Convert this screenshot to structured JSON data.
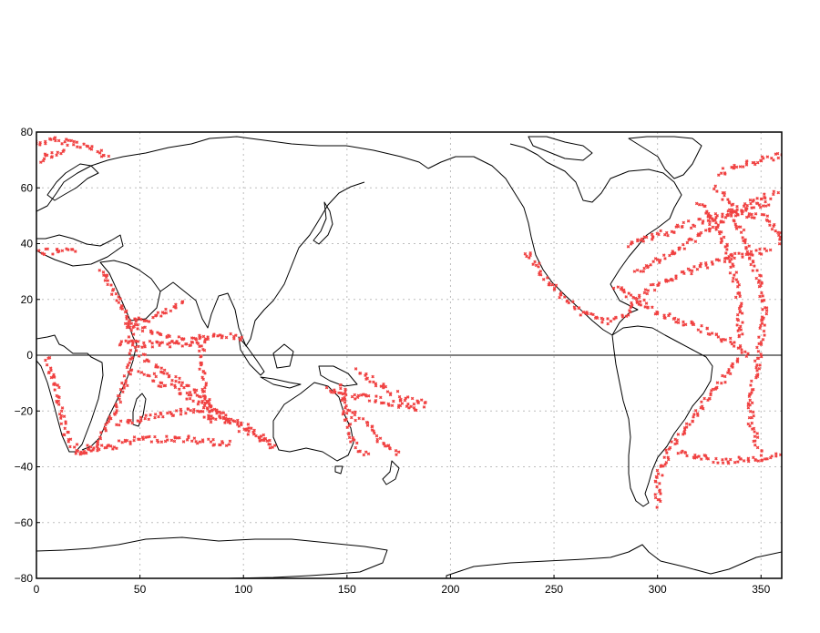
{
  "chart_data": {
    "type": "scatter",
    "title": "",
    "xlabel": "",
    "ylabel": "",
    "xlim": [
      0,
      360
    ],
    "ylim": [
      -80,
      80
    ],
    "grid": true,
    "reference_line": {
      "y": 0
    },
    "x_ticks": [
      0,
      50,
      100,
      150,
      200,
      250,
      300,
      350
    ],
    "y_ticks": [
      -80,
      -60,
      -40,
      -20,
      0,
      20,
      40,
      60,
      80
    ],
    "x_tick_labels": [
      "0",
      "50",
      "100",
      "150",
      "200",
      "250",
      "300",
      "350"
    ],
    "y_tick_labels": [
      "−80",
      "−60",
      "−40",
      "−20",
      "0",
      "20",
      "40",
      "60",
      "80"
    ],
    "point_color": "#f04040",
    "coastline_color": "#000000",
    "series": [
      {
        "tracks": [
          [
            [
              0,
              76
            ],
            [
              10,
              77
            ],
            [
              20,
              76
            ],
            [
              30,
              73
            ],
            [
              35,
              70
            ]
          ],
          [
            [
              0,
              70
            ],
            [
              8,
              72
            ],
            [
              15,
              74
            ]
          ],
          [
            [
              0,
              37
            ],
            [
              10,
              37
            ],
            [
              20,
              37
            ]
          ],
          [
            [
              32,
              31
            ],
            [
              35,
              27
            ],
            [
              38,
              22
            ],
            [
              42,
              16
            ],
            [
              44,
              13
            ],
            [
              48,
              12
            ],
            [
              55,
              13
            ],
            [
              65,
              16
            ],
            [
              72,
              19
            ]
          ],
          [
            [
              44,
              12
            ],
            [
              50,
              10
            ],
            [
              58,
              8
            ],
            [
              66,
              6
            ],
            [
              74,
              5
            ],
            [
              80,
              6
            ]
          ],
          [
            [
              40,
              4
            ],
            [
              50,
              4
            ],
            [
              60,
              4
            ],
            [
              70,
              4
            ],
            [
              80,
              4
            ]
          ],
          [
            [
              80,
              6
            ],
            [
              90,
              7
            ],
            [
              100,
              6
            ]
          ],
          [
            [
              44,
              12
            ],
            [
              48,
              4
            ],
            [
              45,
              -5
            ],
            [
              40,
              -15
            ],
            [
              35,
              -25
            ],
            [
              30,
              -32
            ],
            [
              20,
              -35
            ],
            [
              15,
              -30
            ],
            [
              12,
              -20
            ],
            [
              8,
              -8
            ],
            [
              5,
              0
            ]
          ],
          [
            [
              20,
              -35
            ],
            [
              35,
              -33
            ],
            [
              50,
              -30
            ],
            [
              70,
              -30
            ],
            [
              95,
              -32
            ]
          ],
          [
            [
              50,
              -5
            ],
            [
              60,
              -10
            ],
            [
              75,
              -15
            ],
            [
              90,
              -22
            ]
          ],
          [
            [
              40,
              -25
            ],
            [
              55,
              -22
            ],
            [
              75,
              -20
            ],
            [
              100,
              -25
            ],
            [
              115,
              -33
            ]
          ],
          [
            [
              50,
              0
            ],
            [
              60,
              -5
            ],
            [
              75,
              -12
            ],
            [
              95,
              -25
            ],
            [
              115,
              -32
            ]
          ],
          [
            [
              80,
              6
            ],
            [
              80,
              -5
            ],
            [
              82,
              -15
            ],
            [
              85,
              -25
            ]
          ],
          [
            [
              140,
              -12
            ],
            [
              150,
              -15
            ],
            [
              160,
              -15
            ],
            [
              175,
              -18
            ],
            [
              185,
              -20
            ]
          ],
          [
            [
              150,
              -20
            ],
            [
              160,
              -25
            ],
            [
              165,
              -30
            ],
            [
              175,
              -36
            ]
          ],
          [
            [
              148,
              -10
            ],
            [
              150,
              -25
            ],
            [
              153,
              -32
            ],
            [
              160,
              -37
            ]
          ],
          [
            [
              155,
              -5
            ],
            [
              165,
              -10
            ],
            [
              175,
              -15
            ],
            [
              190,
              -18
            ]
          ],
          [
            [
              237,
              37
            ],
            [
              245,
              28
            ],
            [
              255,
              20
            ],
            [
              265,
              15
            ],
            [
              275,
              12
            ]
          ],
          [
            [
              275,
              12
            ],
            [
              285,
              15
            ],
            [
              290,
              20
            ],
            [
              300,
              25
            ],
            [
              315,
              30
            ],
            [
              335,
              35
            ],
            [
              355,
              38
            ]
          ],
          [
            [
              285,
              40
            ],
            [
              300,
              43
            ],
            [
              320,
              48
            ],
            [
              340,
              52
            ],
            [
              355,
              55
            ]
          ],
          [
            [
              290,
              30
            ],
            [
              310,
              38
            ],
            [
              330,
              48
            ],
            [
              345,
              55
            ],
            [
              358,
              58
            ]
          ],
          [
            [
              280,
              25
            ],
            [
              300,
              15
            ],
            [
              320,
              10
            ],
            [
              335,
              5
            ],
            [
              345,
              0
            ]
          ],
          [
            [
              328,
              60
            ],
            [
              335,
              55
            ],
            [
              340,
              45
            ],
            [
              345,
              35
            ],
            [
              350,
              25
            ],
            [
              352,
              15
            ],
            [
              350,
              5
            ],
            [
              348,
              -5
            ],
            [
              345,
              -15
            ],
            [
              345,
              -25
            ],
            [
              350,
              -35
            ]
          ],
          [
            [
              320,
              55
            ],
            [
              330,
              45
            ],
            [
              335,
              35
            ],
            [
              338,
              25
            ],
            [
              340,
              15
            ],
            [
              340,
              5
            ]
          ],
          [
            [
              340,
              0
            ],
            [
              330,
              -10
            ],
            [
              320,
              -20
            ],
            [
              310,
              -30
            ],
            [
              305,
              -35
            ],
            [
              300,
              -45
            ],
            [
              300,
              -55
            ]
          ],
          [
            [
              310,
              -35
            ],
            [
              330,
              -38
            ],
            [
              350,
              -37
            ],
            [
              360,
              -36
            ]
          ],
          [
            [
              330,
              65
            ],
            [
              340,
              68
            ],
            [
              350,
              70
            ],
            [
              360,
              72
            ]
          ],
          [
            [
              340,
              50
            ],
            [
              350,
              50
            ],
            [
              358,
              45
            ],
            [
              360,
              40
            ]
          ]
        ]
      }
    ]
  }
}
